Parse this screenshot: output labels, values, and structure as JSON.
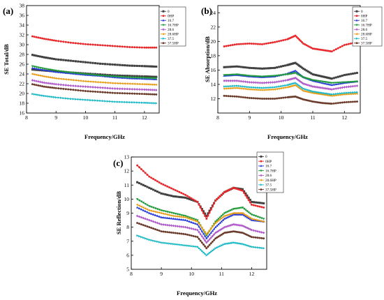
{
  "chart_data": [
    {
      "type": "line",
      "panel_label": "(a)",
      "xlabel": "Frequency/GHz",
      "ylabel": "SE Total/dB",
      "xlim": [
        8,
        12.5
      ],
      "ylim": [
        16,
        38
      ],
      "xticks": [
        8,
        9,
        10,
        11,
        12
      ],
      "yticks": [
        16,
        18,
        20,
        22,
        24,
        26,
        28,
        30,
        32,
        34,
        36,
        38
      ],
      "legend_position": "top-right",
      "series": [
        {
          "name": "0",
          "color": "#404040",
          "marker": "square",
          "x": [
            8.2,
            8.6,
            9.0,
            9.5,
            10.0,
            10.5,
            11.0,
            11.5,
            12.0,
            12.4
          ],
          "y": [
            24.9,
            24.7,
            24.5,
            24.3,
            24.1,
            23.9,
            23.7,
            23.6,
            23.5,
            23.4
          ]
        },
        {
          "name": "0HP",
          "color": "#e8282b",
          "marker": "circle",
          "x": [
            8.2,
            8.6,
            9.0,
            9.5,
            10.0,
            10.5,
            11.0,
            11.5,
            12.0,
            12.4
          ],
          "y": [
            31.7,
            31.2,
            30.8,
            30.4,
            30.1,
            29.9,
            29.7,
            29.5,
            29.4,
            29.4
          ]
        },
        {
          "name": "16.7",
          "color": "#2a3fd6",
          "marker": "triangle-up",
          "x": [
            8.2,
            8.6,
            9.0,
            9.5,
            10.0,
            10.5,
            11.0,
            11.5,
            12.0,
            12.4
          ],
          "y": [
            25.2,
            24.8,
            24.4,
            24.1,
            23.8,
            23.6,
            23.3,
            23.1,
            23.0,
            22.9
          ]
        },
        {
          "name": "16.7HP",
          "color": "#1f9a3a",
          "marker": "triangle-down",
          "x": [
            8.2,
            8.6,
            9.0,
            9.5,
            10.0,
            10.5,
            11.0,
            11.5,
            12.0,
            12.4
          ],
          "y": [
            25.6,
            25.1,
            24.7,
            24.3,
            24.0,
            23.7,
            23.5,
            23.3,
            23.2,
            23.1
          ]
        },
        {
          "name": "28.6",
          "color": "#b05bc9",
          "marker": "diamond",
          "x": [
            8.2,
            8.6,
            9.0,
            9.5,
            10.0,
            10.5,
            11.0,
            11.5,
            12.0,
            12.4
          ],
          "y": [
            22.7,
            22.2,
            21.9,
            21.6,
            21.4,
            21.2,
            21.0,
            20.9,
            20.8,
            20.7
          ]
        },
        {
          "name": "28.6HP",
          "color": "#e89b10",
          "marker": "triangle-left",
          "x": [
            8.2,
            8.6,
            9.0,
            9.5,
            10.0,
            10.5,
            11.0,
            11.5,
            12.0,
            12.4
          ],
          "y": [
            24.0,
            23.5,
            23.1,
            22.8,
            22.5,
            22.3,
            22.1,
            22.0,
            21.9,
            21.8
          ]
        },
        {
          "name": "37.5",
          "color": "#19b8c4",
          "marker": "triangle-right",
          "x": [
            8.2,
            8.6,
            9.0,
            9.5,
            10.0,
            10.5,
            11.0,
            11.5,
            12.0,
            12.4
          ],
          "y": [
            19.9,
            19.5,
            19.2,
            18.9,
            18.7,
            18.5,
            18.3,
            18.2,
            18.1,
            18.0
          ]
        },
        {
          "name": "37.5HP",
          "color": "#6a3b2a",
          "marker": "circle",
          "x": [
            8.2,
            8.6,
            9.0,
            9.5,
            10.0,
            10.5,
            11.0,
            11.5,
            12.0,
            12.4
          ],
          "y": [
            21.9,
            21.4,
            21.1,
            20.8,
            20.5,
            20.3,
            20.1,
            20.0,
            19.9,
            19.8
          ]
        },
        {
          "name": "",
          "color": "#404040",
          "marker": "square",
          "x": [
            8.2,
            8.6,
            9.0,
            9.5,
            10.0,
            10.5,
            11.0,
            11.5,
            12.0,
            12.4
          ],
          "y": [
            27.9,
            27.4,
            27.0,
            26.7,
            26.4,
            26.1,
            25.9,
            25.7,
            25.6,
            25.5
          ]
        }
      ]
    },
    {
      "type": "line",
      "panel_label": "(b)",
      "xlabel": "Frequency/GHz",
      "ylabel": "SE Absorption/dB",
      "xlim": [
        8,
        12.5
      ],
      "ylim": [
        10,
        25
      ],
      "xticks": [
        8,
        9,
        10,
        11,
        12
      ],
      "yticks": [
        12,
        14,
        16,
        18,
        20,
        22,
        24
      ],
      "legend_position": "top-right",
      "series": [
        {
          "name": "0",
          "color": "#404040",
          "marker": "square",
          "x": [
            8.2,
            8.6,
            9.0,
            9.4,
            9.8,
            10.2,
            10.45,
            10.7,
            11.0,
            11.3,
            11.6,
            12.0,
            12.4
          ],
          "y": [
            16.4,
            16.5,
            16.3,
            16.2,
            16.3,
            16.7,
            17.0,
            16.2,
            15.4,
            15.1,
            14.8,
            15.3,
            15.6
          ]
        },
        {
          "name": "0HP",
          "color": "#e8282b",
          "marker": "circle",
          "x": [
            8.2,
            8.6,
            9.0,
            9.4,
            9.8,
            10.2,
            10.45,
            10.7,
            11.0,
            11.3,
            11.6,
            12.0,
            12.4
          ],
          "y": [
            19.3,
            19.6,
            19.7,
            19.6,
            19.9,
            20.3,
            20.8,
            19.7,
            19.0,
            18.8,
            18.6,
            19.5,
            19.9
          ]
        },
        {
          "name": "16.7",
          "color": "#2a3fd6",
          "marker": "triangle-up",
          "x": [
            8.2,
            8.6,
            9.0,
            9.4,
            9.8,
            10.2,
            10.45,
            10.7,
            11.0,
            11.3,
            11.6,
            12.0,
            12.4
          ],
          "y": [
            15.2,
            15.3,
            15.1,
            15.0,
            15.1,
            15.5,
            15.9,
            15.0,
            14.5,
            14.2,
            13.9,
            14.2,
            14.4
          ]
        },
        {
          "name": "16.7HP",
          "color": "#1f9a3a",
          "marker": "triangle-down",
          "x": [
            8.2,
            8.6,
            9.0,
            9.4,
            9.8,
            10.2,
            10.45,
            10.7,
            11.0,
            11.3,
            11.6,
            12.0,
            12.4
          ],
          "y": [
            15.3,
            15.4,
            15.2,
            15.1,
            15.2,
            15.4,
            15.6,
            15.0,
            14.6,
            14.4,
            14.2,
            14.3,
            14.4
          ]
        },
        {
          "name": "28.6",
          "color": "#b05bc9",
          "marker": "diamond",
          "x": [
            8.2,
            8.6,
            9.0,
            9.4,
            9.8,
            10.2,
            10.45,
            10.7,
            11.0,
            11.3,
            11.6,
            12.0,
            12.4
          ],
          "y": [
            14.5,
            14.5,
            14.3,
            14.2,
            14.3,
            14.6,
            14.9,
            14.1,
            13.7,
            13.5,
            13.3,
            13.6,
            13.8
          ]
        },
        {
          "name": "28.6HP",
          "color": "#e89b10",
          "marker": "triangle-left",
          "x": [
            8.2,
            8.6,
            9.0,
            9.4,
            9.8,
            10.2,
            10.45,
            10.7,
            11.0,
            11.3,
            11.6,
            12.0,
            12.4
          ],
          "y": [
            13.4,
            13.5,
            13.3,
            13.2,
            13.3,
            13.6,
            13.9,
            13.1,
            12.8,
            12.6,
            12.4,
            12.6,
            12.7
          ]
        },
        {
          "name": "37.5",
          "color": "#19b8c4",
          "marker": "triangle-right",
          "x": [
            8.2,
            8.6,
            9.0,
            9.4,
            9.8,
            10.2,
            10.45,
            10.7,
            11.0,
            11.3,
            11.6,
            12.0,
            12.4
          ],
          "y": [
            13.7,
            13.8,
            13.6,
            13.5,
            13.6,
            13.9,
            14.2,
            13.4,
            13.0,
            12.8,
            12.6,
            12.8,
            12.9
          ]
        },
        {
          "name": "37.5HP",
          "color": "#6a3b2a",
          "marker": "circle",
          "x": [
            8.2,
            8.6,
            9.0,
            9.4,
            9.8,
            10.2,
            10.45,
            10.7,
            11.0,
            11.3,
            11.6,
            12.0,
            12.4
          ],
          "y": [
            12.4,
            12.3,
            12.1,
            12.0,
            12.0,
            12.2,
            12.3,
            11.9,
            11.6,
            11.4,
            11.3,
            11.5,
            11.6
          ]
        }
      ]
    },
    {
      "type": "line",
      "panel_label": "(c)",
      "xlabel": "Frequency/GHz",
      "ylabel": "SE Reflection/dB",
      "xlim": [
        8,
        12.5
      ],
      "ylim": [
        5,
        13
      ],
      "xticks": [
        8,
        9,
        10,
        11,
        12
      ],
      "yticks": [
        5,
        6,
        7,
        8,
        9,
        10,
        11,
        12,
        13
      ],
      "legend_position": "top-right",
      "series": [
        {
          "name": "0",
          "color": "#404040",
          "marker": "square",
          "x": [
            8.2,
            8.6,
            9.0,
            9.4,
            9.8,
            10.2,
            10.5,
            10.8,
            11.1,
            11.4,
            11.7,
            12.0,
            12.4
          ],
          "y": [
            11.2,
            10.8,
            10.4,
            10.2,
            10.1,
            9.8,
            8.8,
            9.9,
            10.5,
            10.8,
            10.7,
            9.8,
            9.7
          ]
        },
        {
          "name": "0HP",
          "color": "#e8282b",
          "marker": "circle",
          "x": [
            8.2,
            8.6,
            9.0,
            9.4,
            9.8,
            10.2,
            10.5,
            10.8,
            11.1,
            11.4,
            11.7,
            12.0,
            12.4
          ],
          "y": [
            12.4,
            11.6,
            11.1,
            10.7,
            10.3,
            9.8,
            8.6,
            9.9,
            10.5,
            10.8,
            10.6,
            9.6,
            9.4
          ]
        },
        {
          "name": "16.7",
          "color": "#2a3fd6",
          "marker": "triangle-up",
          "x": [
            8.2,
            8.6,
            9.0,
            9.4,
            9.8,
            10.2,
            10.5,
            10.8,
            11.1,
            11.4,
            11.7,
            12.0,
            12.4
          ],
          "y": [
            9.4,
            9.0,
            8.7,
            8.6,
            8.5,
            8.2,
            7.2,
            8.0,
            8.6,
            8.9,
            8.9,
            8.5,
            8.4
          ]
        },
        {
          "name": "16.7HP",
          "color": "#1f9a3a",
          "marker": "triangle-down",
          "x": [
            8.2,
            8.6,
            9.0,
            9.4,
            9.8,
            10.2,
            10.5,
            10.8,
            11.1,
            11.4,
            11.7,
            12.0,
            12.4
          ],
          "y": [
            10.0,
            9.5,
            9.2,
            9.0,
            8.8,
            8.5,
            7.4,
            8.4,
            9.0,
            9.3,
            9.4,
            8.9,
            8.6
          ]
        },
        {
          "name": "28.6",
          "color": "#b05bc9",
          "marker": "diamond",
          "x": [
            8.2,
            8.6,
            9.0,
            9.4,
            9.8,
            10.2,
            10.5,
            10.8,
            11.1,
            11.4,
            11.7,
            12.0,
            12.4
          ],
          "y": [
            8.8,
            8.5,
            8.2,
            8.1,
            8.0,
            7.8,
            6.9,
            7.6,
            8.0,
            8.2,
            8.1,
            7.8,
            7.6
          ]
        },
        {
          "name": "28.6HP",
          "color": "#e89b10",
          "marker": "triangle-left",
          "x": [
            8.2,
            8.6,
            9.0,
            9.4,
            9.8,
            10.2,
            10.5,
            10.8,
            11.1,
            11.4,
            11.7,
            12.0,
            12.4
          ],
          "y": [
            9.6,
            9.2,
            9.0,
            8.8,
            8.7,
            8.4,
            7.5,
            8.3,
            8.8,
            9.0,
            9.0,
            8.6,
            8.4
          ]
        },
        {
          "name": "37.5",
          "color": "#19b8c4",
          "marker": "triangle-right",
          "x": [
            8.2,
            8.6,
            9.0,
            9.4,
            9.8,
            10.2,
            10.5,
            10.8,
            11.1,
            11.4,
            11.7,
            12.0,
            12.4
          ],
          "y": [
            7.4,
            7.1,
            6.9,
            6.8,
            6.7,
            6.6,
            6.0,
            6.5,
            6.8,
            6.9,
            6.8,
            6.6,
            6.5
          ]
        },
        {
          "name": "37.5HP",
          "color": "#6a3b2a",
          "marker": "circle",
          "x": [
            8.2,
            8.6,
            9.0,
            9.4,
            9.8,
            10.2,
            10.5,
            10.8,
            11.1,
            11.4,
            11.7,
            12.0,
            12.4
          ],
          "y": [
            8.3,
            8.0,
            7.7,
            7.6,
            7.5,
            7.3,
            6.5,
            7.2,
            7.6,
            7.7,
            7.6,
            7.3,
            7.2
          ]
        }
      ]
    }
  ]
}
